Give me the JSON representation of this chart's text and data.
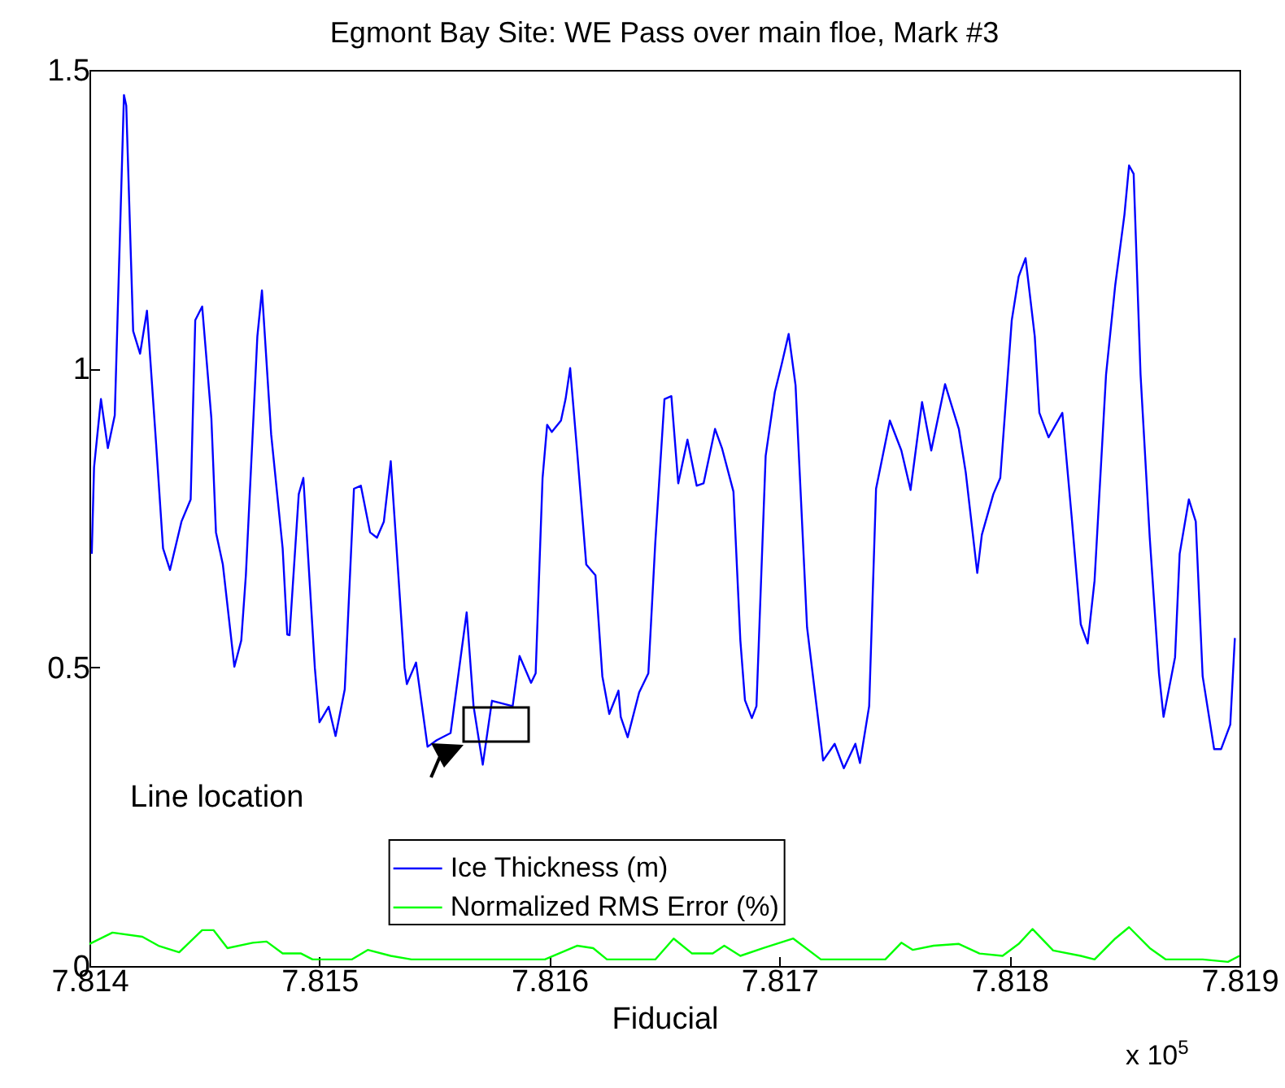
{
  "chart_data": {
    "type": "line",
    "title": "Egmont Bay Site: WE Pass over main floe, Mark #3",
    "xlabel": "Fiducial",
    "xlim": [
      7.814,
      7.819
    ],
    "xticks": [
      7.814,
      7.815,
      7.816,
      7.817,
      7.818,
      7.819
    ],
    "ylim": [
      0,
      1.5
    ],
    "yticks": [
      0,
      0.5,
      1,
      1.5
    ],
    "legend": "bottom",
    "annotations": [
      "x 10$^{5}$",
      "Line location"
    ],
    "series": [
      {
        "name": "Ice Thickness (m)",
        "color": "#0000ff",
        "x": [
          7.81401,
          7.81402,
          7.81405,
          7.81408,
          7.81411,
          7.81415,
          7.81416,
          7.81419,
          7.81422,
          7.81425,
          7.81429,
          7.81432,
          7.81435,
          7.8144,
          7.81444,
          7.81446,
          7.81449,
          7.81453,
          7.81455,
          7.81458,
          7.81463,
          7.81466,
          7.81468,
          7.81473,
          7.81475,
          7.81479,
          7.81484,
          7.81486,
          7.81487,
          7.81491,
          7.81493,
          7.81498,
          7.815,
          7.81504,
          7.81507,
          7.81511,
          7.81515,
          7.81518,
          7.81522,
          7.81525,
          7.81528,
          7.81531,
          7.81537,
          7.81538,
          7.81542,
          7.81547,
          7.81551,
          7.81557,
          7.81564,
          7.81567,
          7.81571,
          7.81575,
          7.81584,
          7.81587,
          7.81592,
          7.81594,
          7.81597,
          7.81599,
          7.81601,
          7.81605,
          7.81607,
          7.81609,
          7.81612,
          7.81616,
          7.8162,
          7.81623,
          7.81626,
          7.8163,
          7.81631,
          7.81634,
          7.81639,
          7.81643,
          7.81646,
          7.8165,
          7.81653,
          7.81656,
          7.8166,
          7.81664,
          7.81667,
          7.81672,
          7.81675,
          7.8168,
          7.81683,
          7.81685,
          7.81688,
          7.8169,
          7.81694,
          7.81698,
          7.81701,
          7.81704,
          7.81707,
          7.81712,
          7.81719,
          7.81724,
          7.81728,
          7.81733,
          7.81735,
          7.81739,
          7.81742,
          7.81748,
          7.81753,
          7.81757,
          7.81762,
          7.81766,
          7.81772,
          7.81778,
          7.81781,
          7.81786,
          7.81788,
          7.81793,
          7.81796,
          7.81801,
          7.81804,
          7.81807,
          7.81811,
          7.81813,
          7.81817,
          7.81823,
          7.81827,
          7.81831,
          7.81834,
          7.81837,
          7.81842,
          7.81846,
          7.8185,
          7.81852,
          7.81854,
          7.81857,
          7.81861,
          7.81865,
          7.81867,
          7.81872,
          7.81874,
          7.81878,
          7.81881,
          7.81884,
          7.81889,
          7.81892,
          7.81896,
          7.81898
        ],
        "values": [
          0.69,
          0.835,
          0.949,
          0.867,
          0.922,
          1.458,
          1.44,
          1.063,
          1.025,
          1.097,
          0.873,
          0.699,
          0.663,
          0.744,
          0.781,
          1.081,
          1.104,
          0.917,
          0.726,
          0.672,
          0.501,
          0.545,
          0.654,
          1.054,
          1.131,
          0.89,
          0.699,
          0.555,
          0.554,
          0.79,
          0.817,
          0.499,
          0.408,
          0.434,
          0.385,
          0.463,
          0.799,
          0.804,
          0.726,
          0.717,
          0.744,
          0.845,
          0.499,
          0.472,
          0.508,
          0.367,
          0.378,
          0.39,
          0.592,
          0.435,
          0.337,
          0.444,
          0.435,
          0.519,
          0.474,
          0.49,
          0.817,
          0.906,
          0.894,
          0.913,
          0.949,
          1.001,
          0.863,
          0.672,
          0.654,
          0.485,
          0.422,
          0.461,
          0.417,
          0.383,
          0.458,
          0.49,
          0.708,
          0.949,
          0.954,
          0.808,
          0.881,
          0.804,
          0.808,
          0.899,
          0.867,
          0.794,
          0.545,
          0.445,
          0.415,
          0.435,
          0.854,
          0.961,
          1.008,
          1.058,
          0.972,
          0.567,
          0.344,
          0.372,
          0.331,
          0.372,
          0.34,
          0.435,
          0.799,
          0.913,
          0.863,
          0.797,
          0.944,
          0.863,
          0.974,
          0.899,
          0.826,
          0.658,
          0.722,
          0.79,
          0.817,
          1.081,
          1.154,
          1.185,
          1.054,
          0.926,
          0.885,
          0.926,
          0.754,
          0.572,
          0.54,
          0.645,
          0.99,
          1.14,
          1.258,
          1.34,
          1.326,
          0.99,
          0.717,
          0.49,
          0.417,
          0.517,
          0.69,
          0.781,
          0.744,
          0.485,
          0.363,
          0.363,
          0.404,
          0.549
        ]
      },
      {
        "name": "Normalized RMS Error (%)",
        "color": "#00ff00",
        "x": [
          7.814,
          7.8141,
          7.81423,
          7.8143,
          7.81439,
          7.81449,
          7.81454,
          7.8146,
          7.81471,
          7.81477,
          7.81484,
          7.81492,
          7.81497,
          7.81514,
          7.81521,
          7.81531,
          7.8154,
          7.81598,
          7.81612,
          7.81619,
          7.81625,
          7.81646,
          7.81654,
          7.81662,
          7.81671,
          7.81676,
          7.81683,
          7.81693,
          7.81706,
          7.81718,
          7.81746,
          7.81753,
          7.81758,
          7.81767,
          7.81778,
          7.81787,
          7.81797,
          7.81804,
          7.8181,
          7.81819,
          7.81831,
          7.81837,
          7.81846,
          7.81852,
          7.81861,
          7.81868,
          7.81884,
          7.81895,
          7.819
        ],
        "values": [
          0.037,
          0.056,
          0.049,
          0.034,
          0.023,
          0.06,
          0.06,
          0.03,
          0.039,
          0.041,
          0.021,
          0.021,
          0.011,
          0.011,
          0.027,
          0.017,
          0.011,
          0.011,
          0.034,
          0.03,
          0.011,
          0.011,
          0.046,
          0.021,
          0.021,
          0.034,
          0.017,
          0.03,
          0.046,
          0.011,
          0.011,
          0.039,
          0.027,
          0.034,
          0.037,
          0.021,
          0.017,
          0.037,
          0.062,
          0.026,
          0.017,
          0.011,
          0.046,
          0.065,
          0.03,
          0.011,
          0.011,
          0.007,
          0.017
        ]
      }
    ]
  }
}
